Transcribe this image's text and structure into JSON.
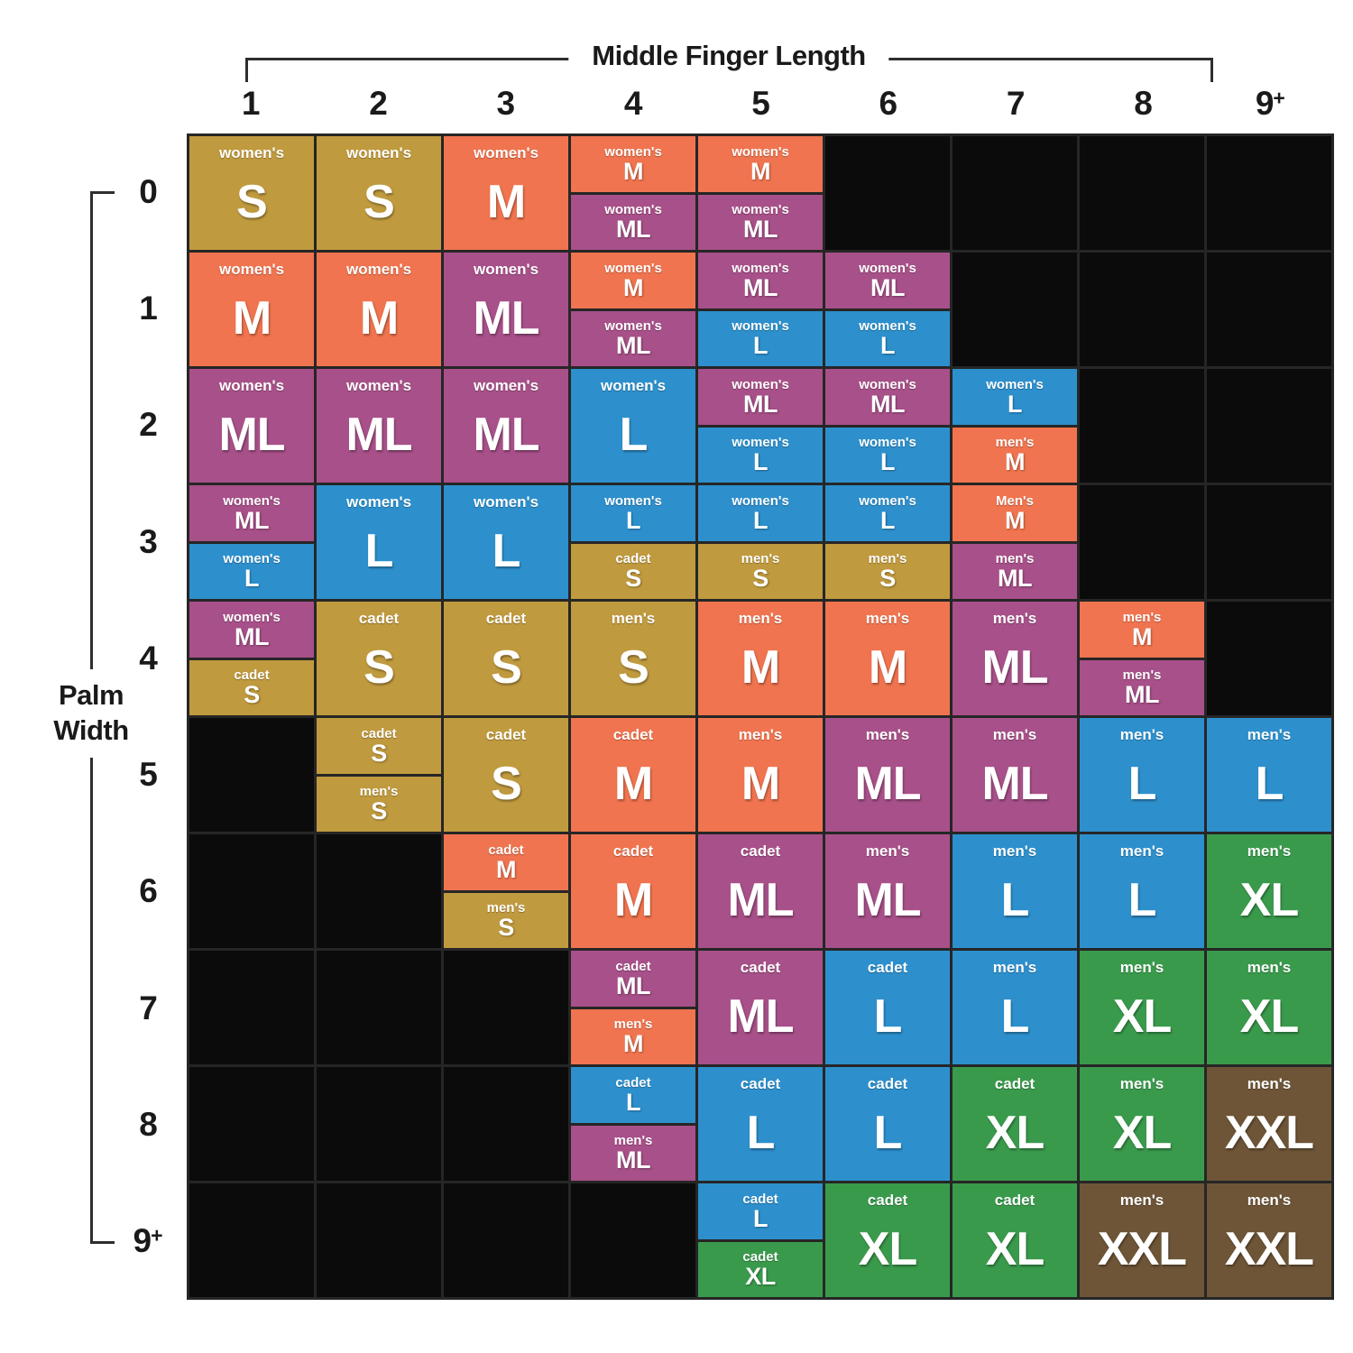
{
  "chart_data": {
    "type": "heatmap",
    "xlabel": "Middle Finger Length",
    "ylabel": "Palm Width",
    "x_ticks": [
      "1",
      "2",
      "3",
      "4",
      "5",
      "6",
      "7",
      "8",
      "9+"
    ],
    "y_ticks": [
      "0",
      "1",
      "2",
      "3",
      "4",
      "5",
      "6",
      "7",
      "8",
      "9+"
    ],
    "legend_position": "none",
    "grid_on": true,
    "colors": {
      "gold": "#c09a3e",
      "orange": "#f0744f",
      "purple": "#a85089",
      "blue": "#2d90cd",
      "green": "#3a9a4c",
      "brown": "#6e5537",
      "empty": "#0b0b0b",
      "gridline": "#262626",
      "axis_text": "#1a1a1a"
    },
    "grid": [
      [
        {
          "category": "women's",
          "size": "S",
          "color": "gold"
        },
        {
          "category": "women's",
          "size": "S",
          "color": "gold"
        },
        {
          "category": "women's",
          "size": "M",
          "color": "orange"
        },
        {
          "split": [
            {
              "category": "women's",
              "size": "M",
              "color": "orange"
            },
            {
              "category": "women's",
              "size": "ML",
              "color": "purple"
            }
          ]
        },
        {
          "split": [
            {
              "category": "women's",
              "size": "M",
              "color": "orange"
            },
            {
              "category": "women's",
              "size": "ML",
              "color": "purple"
            }
          ]
        },
        null,
        null,
        null,
        null
      ],
      [
        {
          "category": "women's",
          "size": "M",
          "color": "orange"
        },
        {
          "category": "women's",
          "size": "M",
          "color": "orange"
        },
        {
          "category": "women's",
          "size": "ML",
          "color": "purple"
        },
        {
          "split": [
            {
              "category": "women's",
              "size": "M",
              "color": "orange"
            },
            {
              "category": "women's",
              "size": "ML",
              "color": "purple"
            }
          ]
        },
        {
          "split": [
            {
              "category": "women's",
              "size": "ML",
              "color": "purple"
            },
            {
              "category": "women's",
              "size": "L",
              "color": "blue"
            }
          ]
        },
        {
          "split": [
            {
              "category": "women's",
              "size": "ML",
              "color": "purple"
            },
            {
              "category": "women's",
              "size": "L",
              "color": "blue"
            }
          ]
        },
        null,
        null,
        null
      ],
      [
        {
          "category": "women's",
          "size": "ML",
          "color": "purple"
        },
        {
          "category": "women's",
          "size": "ML",
          "color": "purple"
        },
        {
          "category": "women's",
          "size": "ML",
          "color": "purple"
        },
        {
          "category": "women's",
          "size": "L",
          "color": "blue"
        },
        {
          "split": [
            {
              "category": "women's",
              "size": "ML",
              "color": "purple"
            },
            {
              "category": "women's",
              "size": "L",
              "color": "blue"
            }
          ]
        },
        {
          "split": [
            {
              "category": "women's",
              "size": "ML",
              "color": "purple"
            },
            {
              "category": "women's",
              "size": "L",
              "color": "blue"
            }
          ]
        },
        {
          "split": [
            {
              "category": "women's",
              "size": "L",
              "color": "blue"
            },
            {
              "category": "men's",
              "size": "M",
              "color": "orange"
            }
          ]
        },
        null,
        null
      ],
      [
        {
          "split": [
            {
              "category": "women's",
              "size": "ML",
              "color": "purple"
            },
            {
              "category": "women's",
              "size": "L",
              "color": "blue"
            }
          ]
        },
        {
          "category": "women's",
          "size": "L",
          "color": "blue"
        },
        {
          "category": "women's",
          "size": "L",
          "color": "blue"
        },
        {
          "split": [
            {
              "category": "women's",
              "size": "L",
              "color": "blue"
            },
            {
              "category": "cadet",
              "size": "S",
              "color": "gold"
            }
          ]
        },
        {
          "split": [
            {
              "category": "women's",
              "size": "L",
              "color": "blue"
            },
            {
              "category": "men's",
              "size": "S",
              "color": "gold"
            }
          ]
        },
        {
          "split": [
            {
              "category": "women's",
              "size": "L",
              "color": "blue"
            },
            {
              "category": "men's",
              "size": "S",
              "color": "gold"
            }
          ]
        },
        {
          "split": [
            {
              "category": "Men's",
              "size": "M",
              "color": "orange"
            },
            {
              "category": "men's",
              "size": "ML",
              "color": "purple"
            }
          ]
        },
        null,
        null
      ],
      [
        {
          "split": [
            {
              "category": "women's",
              "size": "ML",
              "color": "purple"
            },
            {
              "category": "cadet",
              "size": "S",
              "color": "gold"
            }
          ]
        },
        {
          "category": "cadet",
          "size": "S",
          "color": "gold"
        },
        {
          "category": "cadet",
          "size": "S",
          "color": "gold"
        },
        {
          "category": "men's",
          "size": "S",
          "color": "gold"
        },
        {
          "category": "men's",
          "size": "M",
          "color": "orange"
        },
        {
          "category": "men's",
          "size": "M",
          "color": "orange"
        },
        {
          "category": "men's",
          "size": "ML",
          "color": "purple"
        },
        {
          "split": [
            {
              "category": "men's",
              "size": "M",
              "color": "orange"
            },
            {
              "category": "men's",
              "size": "ML",
              "color": "purple"
            }
          ]
        },
        null
      ],
      [
        null,
        {
          "split": [
            {
              "category": "cadet",
              "size": "S",
              "color": "gold"
            },
            {
              "category": "men's",
              "size": "S",
              "color": "gold"
            }
          ]
        },
        {
          "category": "cadet",
          "size": "S",
          "color": "gold"
        },
        {
          "category": "cadet",
          "size": "M",
          "color": "orange"
        },
        {
          "category": "men's",
          "size": "M",
          "color": "orange"
        },
        {
          "category": "men's",
          "size": "ML",
          "color": "purple"
        },
        {
          "category": "men's",
          "size": "ML",
          "color": "purple"
        },
        {
          "category": "men's",
          "size": "L",
          "color": "blue"
        },
        {
          "category": "men's",
          "size": "L",
          "color": "blue"
        }
      ],
      [
        null,
        null,
        {
          "split": [
            {
              "category": "cadet",
              "size": "M",
              "color": "orange"
            },
            {
              "category": "men's",
              "size": "S",
              "color": "gold"
            }
          ]
        },
        {
          "category": "cadet",
          "size": "M",
          "color": "orange"
        },
        {
          "category": "cadet",
          "size": "ML",
          "color": "purple"
        },
        {
          "category": "men's",
          "size": "ML",
          "color": "purple"
        },
        {
          "category": "men's",
          "size": "L",
          "color": "blue"
        },
        {
          "category": "men's",
          "size": "L",
          "color": "blue"
        },
        {
          "category": "men's",
          "size": "XL",
          "color": "green"
        }
      ],
      [
        null,
        null,
        null,
        {
          "split": [
            {
              "category": "cadet",
              "size": "ML",
              "color": "purple"
            },
            {
              "category": "men's",
              "size": "M",
              "color": "orange"
            }
          ]
        },
        {
          "category": "cadet",
          "size": "ML",
          "color": "purple"
        },
        {
          "category": "cadet",
          "size": "L",
          "color": "blue"
        },
        {
          "category": "men's",
          "size": "L",
          "color": "blue"
        },
        {
          "category": "men's",
          "size": "XL",
          "color": "green"
        },
        {
          "category": "men's",
          "size": "XL",
          "color": "green"
        }
      ],
      [
        null,
        null,
        null,
        {
          "split": [
            {
              "category": "cadet",
              "size": "L",
              "color": "blue"
            },
            {
              "category": "men's",
              "size": "ML",
              "color": "purple"
            }
          ]
        },
        {
          "category": "cadet",
          "size": "L",
          "color": "blue"
        },
        {
          "category": "cadet",
          "size": "L",
          "color": "blue"
        },
        {
          "category": "cadet",
          "size": "XL",
          "color": "green"
        },
        {
          "category": "men's",
          "size": "XL",
          "color": "green"
        },
        {
          "category": "men's",
          "size": "XXL",
          "color": "brown"
        }
      ],
      [
        null,
        null,
        null,
        null,
        {
          "split": [
            {
              "category": "cadet",
              "size": "L",
              "color": "blue"
            },
            {
              "category": "cadet",
              "size": "XL",
              "color": "green"
            }
          ]
        },
        {
          "category": "cadet",
          "size": "XL",
          "color": "green"
        },
        {
          "category": "cadet",
          "size": "XL",
          "color": "green"
        },
        {
          "category": "men's",
          "size": "XXL",
          "color": "brown"
        },
        {
          "category": "men's",
          "size": "XXL",
          "color": "brown"
        }
      ]
    ]
  }
}
